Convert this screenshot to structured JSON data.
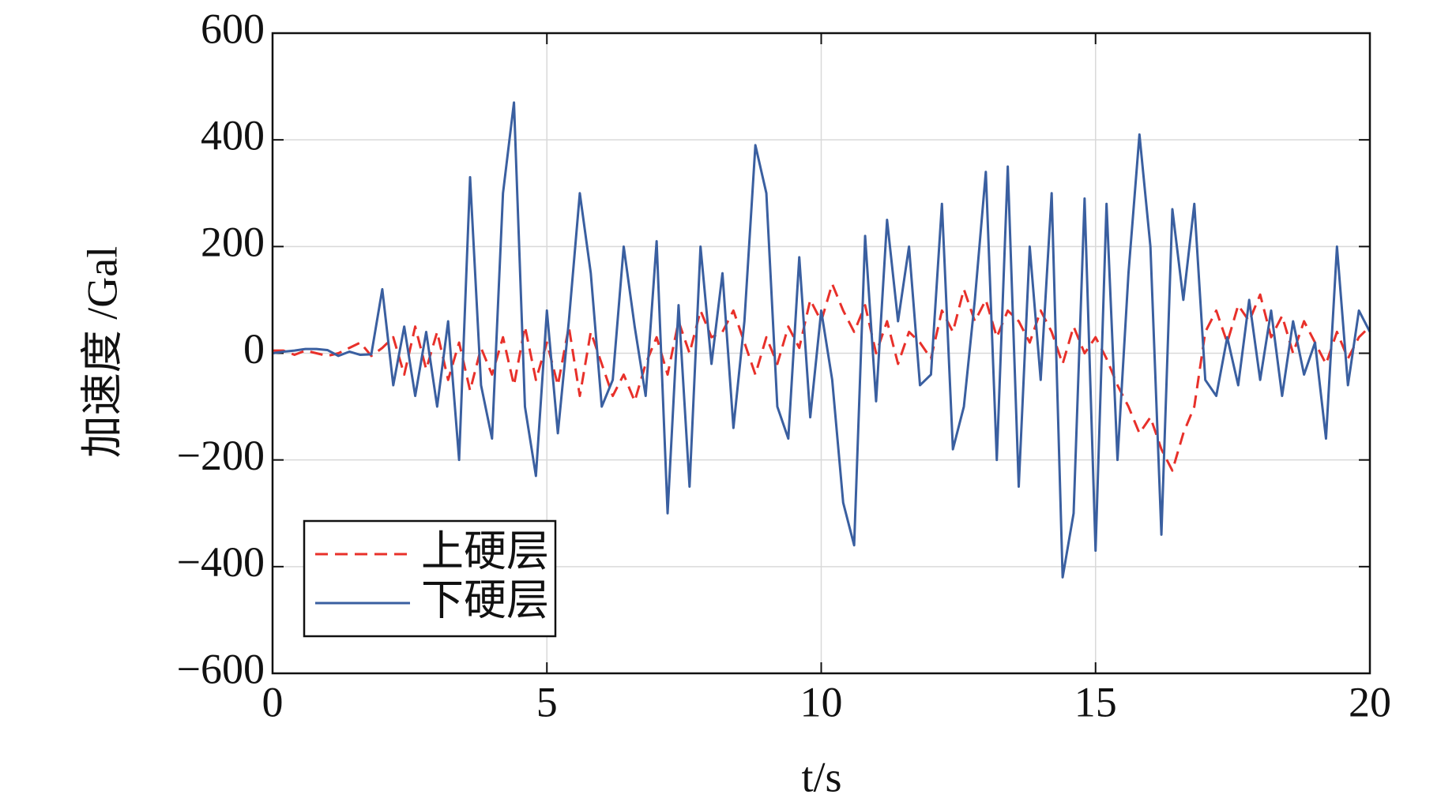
{
  "chart_data": {
    "type": "line",
    "xlabel": "t/s",
    "ylabel": "加速度 /Gal",
    "x": [
      0,
      0.2,
      0.4,
      0.6,
      0.8,
      1,
      1.2,
      1.4,
      1.6,
      1.8,
      2,
      2.2,
      2.4,
      2.6,
      2.8,
      3,
      3.2,
      3.4,
      3.6,
      3.8,
      4,
      4.2,
      4.4,
      4.6,
      4.8,
      5,
      5.2,
      5.4,
      5.6,
      5.8,
      6,
      6.2,
      6.4,
      6.6,
      6.8,
      7,
      7.2,
      7.4,
      7.6,
      7.8,
      8,
      8.2,
      8.4,
      8.6,
      8.8,
      9,
      9.2,
      9.4,
      9.6,
      9.8,
      10,
      10.2,
      10.4,
      10.6,
      10.8,
      11,
      11.2,
      11.4,
      11.6,
      11.8,
      12,
      12.2,
      12.4,
      12.6,
      12.8,
      13,
      13.2,
      13.4,
      13.6,
      13.8,
      14,
      14.2,
      14.4,
      14.6,
      14.8,
      15,
      15.2,
      15.4,
      15.6,
      15.8,
      16,
      16.2,
      16.4,
      16.6,
      16.8,
      17,
      17.2,
      17.4,
      17.6,
      17.8,
      18,
      18.2,
      18.4,
      18.6,
      18.8,
      19,
      19.2,
      19.4,
      19.6,
      19.8,
      20
    ],
    "series": [
      {
        "name": "上硬层",
        "color": "#e8302a",
        "dashed": true,
        "values": [
          5,
          5,
          -3,
          5,
          0,
          -5,
          0,
          10,
          20,
          -5,
          10,
          30,
          -40,
          50,
          -30,
          40,
          -50,
          20,
          -70,
          10,
          -40,
          30,
          -60,
          50,
          -50,
          20,
          -60,
          50,
          -80,
          40,
          -20,
          -80,
          -40,
          -90,
          -20,
          30,
          -40,
          60,
          0,
          80,
          30,
          40,
          80,
          20,
          -40,
          30,
          -20,
          50,
          10,
          100,
          60,
          130,
          80,
          40,
          90,
          0,
          60,
          -20,
          40,
          20,
          -10,
          80,
          40,
          120,
          60,
          100,
          30,
          80,
          60,
          20,
          80,
          40,
          -20,
          50,
          0,
          30,
          -10,
          -60,
          -100,
          -150,
          -120,
          -180,
          -220,
          -150,
          -100,
          40,
          80,
          20,
          90,
          60,
          110,
          30,
          70,
          0,
          60,
          20,
          -20,
          40,
          -10,
          30,
          50
        ]
      },
      {
        "name": "下硬层",
        "color": "#3a5fa0",
        "dashed": false,
        "values": [
          0,
          3,
          5,
          8,
          8,
          6,
          -5,
          3,
          -3,
          -2,
          120,
          -60,
          50,
          -80,
          40,
          -100,
          60,
          -200,
          330,
          -60,
          -160,
          300,
          470,
          -100,
          -230,
          80,
          -150,
          60,
          300,
          150,
          -100,
          -50,
          200,
          50,
          -80,
          210,
          -300,
          90,
          -250,
          200,
          -20,
          150,
          -140,
          60,
          390,
          300,
          -100,
          -160,
          180,
          -120,
          80,
          -50,
          -280,
          -360,
          220,
          -90,
          250,
          60,
          200,
          -60,
          -40,
          280,
          -180,
          -100,
          100,
          340,
          -200,
          350,
          -250,
          200,
          -50,
          300,
          -420,
          -300,
          290,
          -370,
          280,
          -200,
          150,
          410,
          200,
          -340,
          270,
          100,
          280,
          -50,
          -80,
          30,
          -60,
          100,
          -50,
          80,
          -80,
          60,
          -40,
          20,
          -160,
          200,
          -60,
          80,
          40
        ]
      }
    ],
    "xlim": [
      0,
      20
    ],
    "xticks": [
      0,
      5,
      10,
      15,
      20
    ],
    "ylim": [
      -600,
      600
    ],
    "yticks": [
      {
        "value": -600,
        "label": "−600"
      },
      {
        "value": -400,
        "label": "−400"
      },
      {
        "value": -200,
        "label": "−200"
      },
      0,
      200,
      400,
      600
    ],
    "grid": true,
    "legend": "lower left"
  }
}
